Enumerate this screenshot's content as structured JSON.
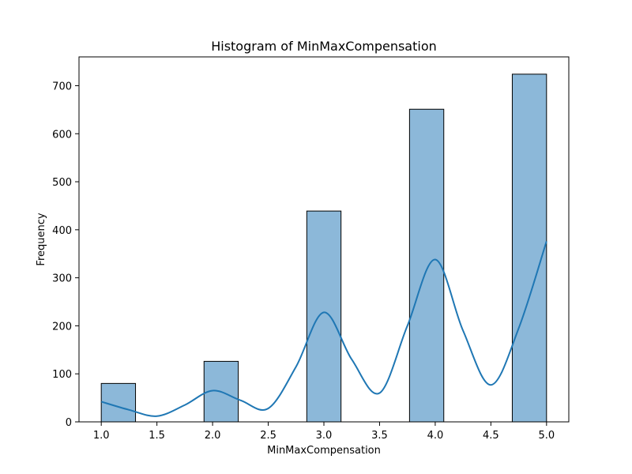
{
  "chart_data": {
    "type": "bar",
    "title": "Histogram of MinMaxCompensation",
    "xlabel": "MinMaxCompensation",
    "ylabel": "Frequency",
    "xlim": [
      0.8,
      5.2
    ],
    "ylim": [
      0,
      760
    ],
    "x_ticks": [
      1.0,
      1.5,
      2.0,
      2.5,
      3.0,
      3.5,
      4.0,
      4.5,
      5.0
    ],
    "x_tick_labels": [
      "1.0",
      "1.5",
      "2.0",
      "2.5",
      "3.0",
      "3.5",
      "4.0",
      "4.5",
      "5.0"
    ],
    "y_ticks": [
      0,
      100,
      200,
      300,
      400,
      500,
      600,
      700
    ],
    "y_tick_labels": [
      "0",
      "100",
      "200",
      "300",
      "400",
      "500",
      "600",
      "700"
    ],
    "bars": [
      {
        "x0": 1.0,
        "x1": 1.3077,
        "value": 80
      },
      {
        "x0": 1.9231,
        "x1": 2.2308,
        "value": 126
      },
      {
        "x0": 2.8462,
        "x1": 3.1538,
        "value": 439
      },
      {
        "x0": 3.7692,
        "x1": 4.0769,
        "value": 651
      },
      {
        "x0": 4.6923,
        "x1": 5.0,
        "value": 724
      }
    ],
    "kde": {
      "x": [
        1.0,
        1.25,
        1.5,
        1.75,
        2.0,
        2.25,
        2.5,
        2.75,
        3.0,
        3.25,
        3.5,
        3.75,
        4.0,
        4.25,
        4.5,
        4.75,
        5.0
      ],
      "y": [
        42,
        25,
        12,
        35,
        65,
        45,
        28,
        115,
        228,
        130,
        60,
        200,
        338,
        190,
        77,
        195,
        376
      ]
    },
    "grid": false,
    "legend": "none",
    "colors": {
      "bar_fill": "#8cb8d9",
      "bar_edge": "#000000",
      "kde_line": "#1f77b4"
    }
  }
}
